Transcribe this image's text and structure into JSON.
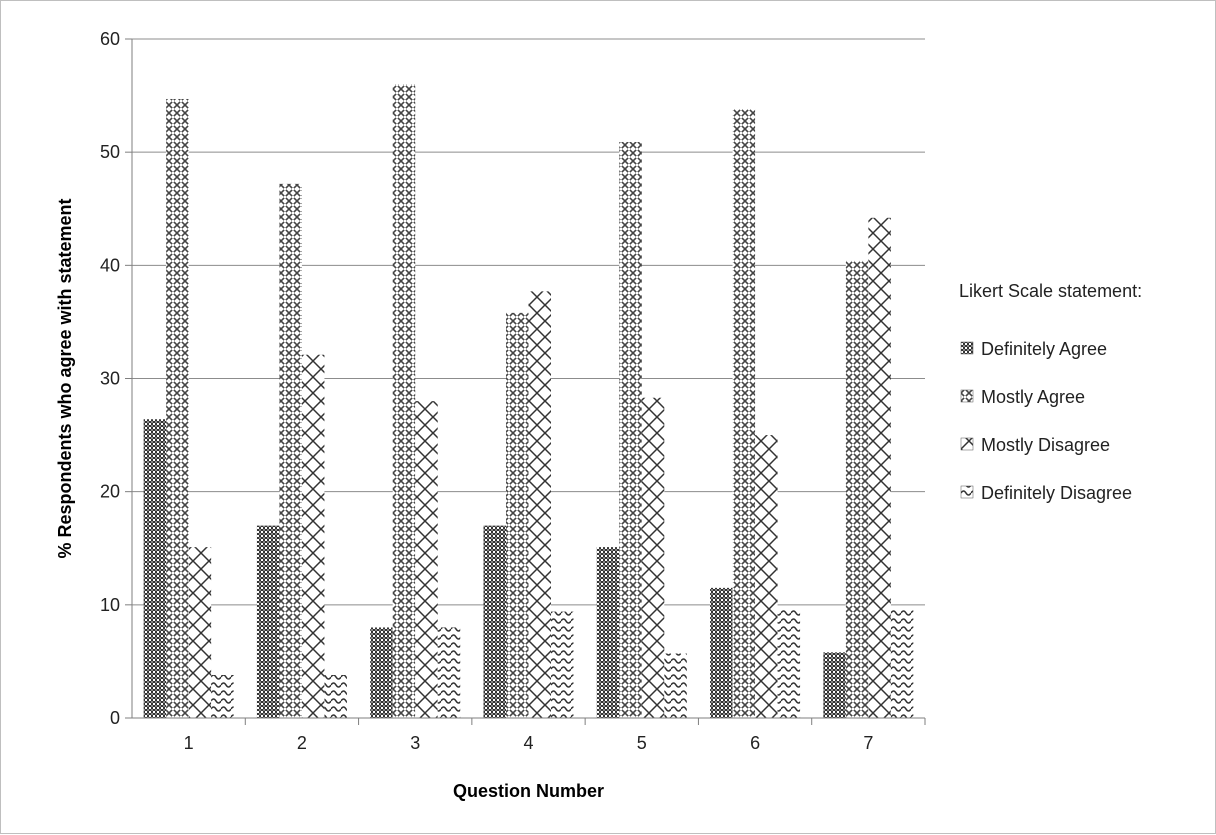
{
  "chart_data": {
    "type": "bar",
    "categories": [
      "1",
      "2",
      "3",
      "4",
      "5",
      "6",
      "7"
    ],
    "series": [
      {
        "name": "Definitely Agree",
        "values": [
          26.4,
          17.0,
          8.0,
          17.0,
          15.1,
          11.5,
          5.8
        ]
      },
      {
        "name": "Mostly Agree",
        "values": [
          54.7,
          47.2,
          56.0,
          35.8,
          50.9,
          53.8,
          40.4
        ]
      },
      {
        "name": "Mostly Disagree",
        "values": [
          15.1,
          32.1,
          28.0,
          37.7,
          28.3,
          25.0,
          44.2
        ]
      },
      {
        "name": "Definitely Disagree",
        "values": [
          3.8,
          3.8,
          8.0,
          9.4,
          5.7,
          9.6,
          9.6
        ]
      }
    ],
    "xlabel": "Question Number",
    "ylabel": "% Respondents who agree with statement",
    "ylim": [
      0,
      60
    ],
    "yticks": [
      0,
      10,
      20,
      30,
      40,
      50,
      60
    ],
    "grid": true,
    "legend_title": "Likert Scale statement:",
    "legend_position": "right",
    "patterns": [
      "dense-checker",
      "checker-diamond",
      "large-cross",
      "wave"
    ]
  }
}
